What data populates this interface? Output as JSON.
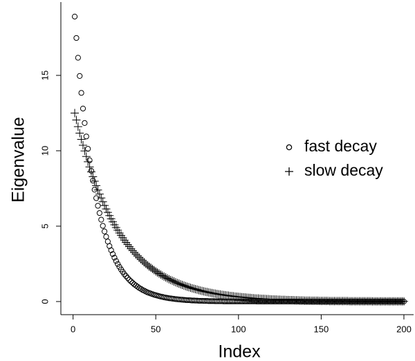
{
  "chart_data": {
    "type": "scatter",
    "x_label": "Index",
    "y_label": "Eigenvalue",
    "x": [
      1,
      2,
      3,
      4,
      5,
      6,
      7,
      8,
      9,
      10,
      11,
      12,
      13,
      14,
      15,
      16,
      17,
      18,
      19,
      20,
      21,
      22,
      23,
      24,
      25,
      26,
      27,
      28,
      29,
      30,
      31,
      32,
      33,
      34,
      35,
      36,
      37,
      38,
      39,
      40,
      41,
      42,
      43,
      44,
      45,
      46,
      47,
      48,
      49,
      50,
      51,
      52,
      53,
      54,
      55,
      56,
      57,
      58,
      59,
      60,
      61,
      62,
      63,
      64,
      65,
      66,
      67,
      68,
      69,
      70,
      71,
      72,
      73,
      74,
      75,
      76,
      77,
      78,
      79,
      80,
      81,
      82,
      83,
      84,
      85,
      86,
      87,
      88,
      89,
      90,
      91,
      92,
      93,
      94,
      95,
      96,
      97,
      98,
      99,
      100,
      101,
      102,
      103,
      104,
      105,
      106,
      107,
      108,
      109,
      110,
      111,
      112,
      113,
      114,
      115,
      116,
      117,
      118,
      119,
      120,
      121,
      122,
      123,
      124,
      125,
      126,
      127,
      128,
      129,
      130,
      131,
      132,
      133,
      134,
      135,
      136,
      137,
      138,
      139,
      140,
      141,
      142,
      143,
      144,
      145,
      146,
      147,
      148,
      149,
      150,
      151,
      152,
      153,
      154,
      155,
      156,
      157,
      158,
      159,
      160,
      161,
      162,
      163,
      164,
      165,
      166,
      167,
      168,
      169,
      170,
      171,
      172,
      173,
      174,
      175,
      176,
      177,
      178,
      179,
      180,
      181,
      182,
      183,
      184,
      185,
      186,
      187,
      188,
      189,
      190,
      191,
      192,
      193,
      194,
      195,
      196,
      197,
      198,
      199,
      200
    ],
    "series": [
      {
        "name": "fast decay",
        "color": "#000000",
        "marker": "circle",
        "values": [
          18.9,
          17.48,
          16.17,
          14.96,
          13.84,
          12.8,
          11.84,
          10.95,
          10.13,
          9.37,
          8.67,
          8.02,
          7.42,
          6.86,
          6.35,
          5.87,
          5.43,
          5.02,
          4.65,
          4.3,
          3.98,
          3.68,
          3.4,
          3.15,
          2.91,
          2.69,
          2.49,
          2.3,
          2.13,
          1.97,
          1.82,
          1.69,
          1.56,
          1.44,
          1.34,
          1.24,
          1.14,
          1.06,
          0.98,
          0.9,
          0.84,
          0.77,
          0.72,
          0.66,
          0.61,
          0.57,
          0.53,
          0.49,
          0.45,
          0.42,
          0.39,
          0.36,
          0.33,
          0.31,
          0.28,
          0.26,
          0.24,
          0.22,
          0.21,
          0.19,
          0.18,
          0.16,
          0.15,
          0.14,
          0.13,
          0.12,
          0.11,
          0.1,
          0.09,
          0.09,
          0.08,
          0.07,
          0.07,
          0.06,
          0.06,
          0.05,
          0.05,
          0.05,
          0.04,
          0.04,
          0.04,
          0.03,
          0.03,
          0.03,
          0.03,
          0.02,
          0.02,
          0.02,
          0.02,
          0.02,
          0.01,
          0.01,
          0.01,
          0.01,
          0.01,
          0.01,
          0.01,
          0.01,
          0.01,
          0.01,
          0.01,
          0.01,
          0.01,
          0.01,
          0.01,
          0.01,
          0.01,
          0.01,
          0.01,
          0.01,
          0,
          0,
          0,
          0,
          0,
          0,
          0,
          0,
          0,
          0,
          0,
          0,
          0,
          0,
          0,
          0,
          0,
          0,
          0,
          0,
          0,
          0,
          0,
          0,
          0,
          0,
          0,
          0,
          0,
          0,
          0,
          0,
          0,
          0,
          0,
          0,
          0,
          0,
          0,
          0,
          0,
          0,
          0,
          0,
          0,
          0,
          0,
          0,
          0,
          0,
          0,
          0,
          0,
          0,
          0,
          0,
          0,
          0,
          0,
          0,
          0,
          0,
          0,
          0,
          0,
          0,
          0,
          0,
          0,
          0,
          0,
          0,
          0,
          0,
          0,
          0,
          0,
          0,
          0,
          0,
          0,
          0,
          0,
          0,
          0,
          0,
          0,
          0,
          0,
          0
        ]
      },
      {
        "name": "slow decay",
        "color": "#000000",
        "marker": "plus",
        "values": [
          12.5,
          12.04,
          11.6,
          11.17,
          10.76,
          10.37,
          9.99,
          9.62,
          9.27,
          8.93,
          8.6,
          8.28,
          7.98,
          7.69,
          7.4,
          7.13,
          6.87,
          6.62,
          6.37,
          6.14,
          5.91,
          5.7,
          5.49,
          5.29,
          5.09,
          4.91,
          4.73,
          4.55,
          4.39,
          4.23,
          4.07,
          3.92,
          3.78,
          3.64,
          3.5,
          3.38,
          3.25,
          3.13,
          3.02,
          2.91,
          2.8,
          2.7,
          2.6,
          2.5,
          2.41,
          2.32,
          2.24,
          2.16,
          2.08,
          2.0,
          1.93,
          1.86,
          1.79,
          1.72,
          1.66,
          1.6,
          1.54,
          1.48,
          1.43,
          1.38,
          1.33,
          1.28,
          1.23,
          1.19,
          1.14,
          1.1,
          1.06,
          1.02,
          0.98,
          0.95,
          0.91,
          0.88,
          0.85,
          0.82,
          0.79,
          0.76,
          0.73,
          0.7,
          0.68,
          0.65,
          0.63,
          0.61,
          0.58,
          0.56,
          0.54,
          0.52,
          0.5,
          0.48,
          0.47,
          0.45,
          0.43,
          0.42,
          0.4,
          0.39,
          0.37,
          0.36,
          0.35,
          0.33,
          0.32,
          0.31,
          0.3,
          0.29,
          0.28,
          0.27,
          0.26,
          0.25,
          0.24,
          0.23,
          0.22,
          0.21,
          0.2,
          0.2,
          0.19,
          0.18,
          0.18,
          0.17,
          0.16,
          0.16,
          0.15,
          0.14,
          0.14,
          0.13,
          0.13,
          0.12,
          0.12,
          0.11,
          0.11,
          0.11,
          0.1,
          0.1,
          0.09,
          0.09,
          0.09,
          0.08,
          0.08,
          0.08,
          0.07,
          0.07,
          0.07,
          0.06,
          0.06,
          0.06,
          0.06,
          0.05,
          0.05,
          0.05,
          0.05,
          0.05,
          0.04,
          0.04,
          0.04,
          0.04,
          0.04,
          0.04,
          0.03,
          0.03,
          0.03,
          0.03,
          0.03,
          0.03,
          0.03,
          0.03,
          0.03,
          0.03,
          0.03,
          0.03,
          0.02,
          0.02,
          0.02,
          0.02,
          0.02,
          0.02,
          0.02,
          0.02,
          0.02,
          0.02,
          0.02,
          0.02,
          0.02,
          0.02,
          0.01,
          0.01,
          0.01,
          0.01,
          0.01,
          0.01,
          0.01,
          0.01,
          0.01,
          0.01,
          0.01,
          0.01,
          0.01,
          0.01,
          0.01,
          0.01,
          0.01,
          0.01,
          0.01,
          0.01
        ]
      }
    ],
    "xlim": [
      -6.96,
      207.96
    ],
    "ylim": [
      -0.756,
      19.656
    ],
    "xticks": [
      0,
      50,
      100,
      150,
      200
    ],
    "yticks": [
      0,
      5,
      10,
      15
    ],
    "legend": "right",
    "grid": false
  }
}
